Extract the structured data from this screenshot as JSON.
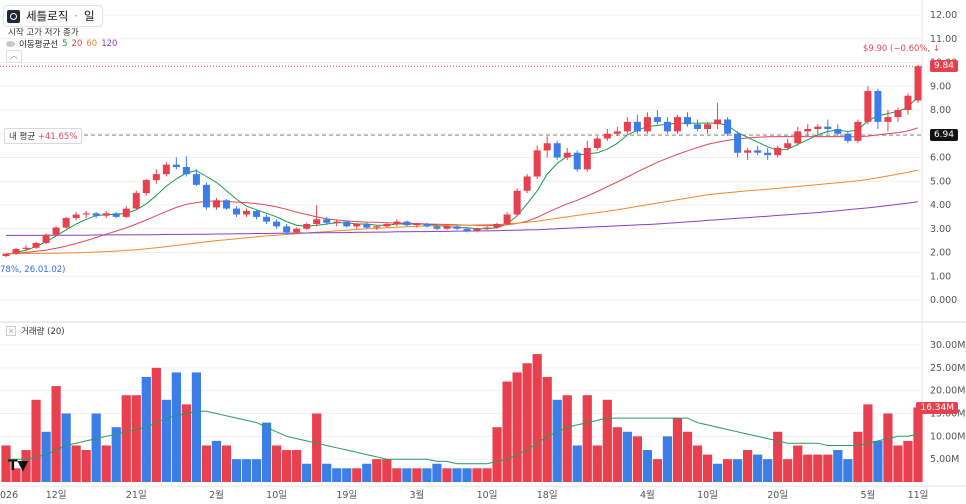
{
  "header": {
    "symbol_name": "세틀로직",
    "interval": "일",
    "ohlc_labels": "시작 고가 저가 종가",
    "ma_label": "이동평균선",
    "ma_periods": [
      "5",
      "20",
      "60",
      "120"
    ],
    "ma_colors": [
      "#1a9a4b",
      "#e04858",
      "#f08a2e",
      "#8c3fbf"
    ],
    "volume_label": "거래량 (20)"
  },
  "annotations": {
    "avg_label": "내 평균",
    "avg_pct": "+41.65%",
    "low_note": "78%, 26.01.02)",
    "high_note": "$9.90 (−0.60%, ↓",
    "last_price": "9.84",
    "avg_price": "6.94",
    "last_volume": "16.34M"
  },
  "colors": {
    "up": "#e8404f",
    "down": "#3b7ee8",
    "grid": "#f0f0f0"
  },
  "chart_data": [
    {
      "type": "candlestick",
      "title": "",
      "y_ticks": [
        "0.000",
        "1.00",
        "2.00",
        "3.00",
        "4.00",
        "5.00",
        "6.00",
        "7.00",
        "8.00",
        "9.00",
        "10.00",
        "11.00",
        "12.00"
      ],
      "ylim": [
        0,
        12
      ],
      "x_ticks": [
        "026",
        "12일",
        "21일",
        "2월",
        "10일",
        "19일",
        "3월",
        "10일",
        "18일",
        "4월",
        "10일",
        "20일",
        "5월",
        "11일"
      ],
      "candles": [
        [
          1.85,
          1.95,
          1.8,
          1.95
        ],
        [
          1.95,
          2.2,
          1.9,
          2.15
        ],
        [
          2.15,
          2.3,
          2.05,
          2.2
        ],
        [
          2.2,
          2.45,
          2.15,
          2.4
        ],
        [
          2.4,
          2.8,
          2.35,
          2.75
        ],
        [
          2.75,
          3.1,
          2.7,
          3.05
        ],
        [
          3.05,
          3.5,
          3.0,
          3.45
        ],
        [
          3.45,
          3.7,
          3.35,
          3.6
        ],
        [
          3.6,
          3.75,
          3.45,
          3.65
        ],
        [
          3.65,
          3.7,
          3.45,
          3.55
        ],
        [
          3.55,
          3.75,
          3.45,
          3.65
        ],
        [
          3.65,
          3.7,
          3.45,
          3.5
        ],
        [
          3.5,
          3.95,
          3.45,
          3.85
        ],
        [
          3.85,
          4.6,
          3.8,
          4.5
        ],
        [
          4.5,
          5.1,
          4.4,
          5.05
        ],
        [
          5.05,
          5.5,
          4.9,
          5.3
        ],
        [
          5.3,
          5.8,
          5.2,
          5.7
        ],
        [
          5.7,
          6.0,
          5.5,
          5.6
        ],
        [
          5.6,
          6.05,
          5.2,
          5.3
        ],
        [
          5.3,
          5.5,
          4.8,
          4.85
        ],
        [
          4.85,
          4.95,
          3.8,
          3.9
        ],
        [
          3.9,
          4.3,
          3.8,
          4.2
        ],
        [
          4.2,
          4.25,
          3.8,
          3.85
        ],
        [
          3.85,
          3.95,
          3.5,
          3.6
        ],
        [
          3.6,
          3.85,
          3.5,
          3.75
        ],
        [
          3.75,
          3.8,
          3.4,
          3.5
        ],
        [
          3.5,
          3.6,
          3.2,
          3.3
        ],
        [
          3.3,
          3.4,
          3.0,
          3.1
        ],
        [
          3.1,
          3.2,
          2.75,
          2.85
        ],
        [
          2.85,
          3.05,
          2.8,
          3.0
        ],
        [
          3.0,
          3.25,
          2.95,
          3.2
        ],
        [
          3.2,
          4.0,
          3.1,
          3.4
        ],
        [
          3.4,
          3.5,
          3.15,
          3.25
        ],
        [
          3.25,
          3.4,
          3.1,
          3.3
        ],
        [
          3.3,
          3.35,
          3.05,
          3.1
        ],
        [
          3.1,
          3.25,
          3.0,
          3.2
        ],
        [
          3.2,
          3.25,
          3.0,
          3.05
        ],
        [
          3.05,
          3.15,
          2.95,
          3.1
        ],
        [
          3.1,
          3.25,
          3.05,
          3.2
        ],
        [
          3.2,
          3.4,
          3.1,
          3.3
        ],
        [
          3.3,
          3.35,
          3.1,
          3.15
        ],
        [
          3.15,
          3.25,
          3.05,
          3.2
        ],
        [
          3.2,
          3.25,
          3.05,
          3.1
        ],
        [
          3.1,
          3.15,
          2.95,
          3.0
        ],
        [
          3.0,
          3.15,
          2.95,
          3.1
        ],
        [
          3.1,
          3.15,
          2.95,
          3.0
        ],
        [
          3.0,
          3.05,
          2.85,
          2.9
        ],
        [
          2.9,
          3.05,
          2.85,
          3.0
        ],
        [
          3.0,
          3.1,
          2.95,
          3.05
        ],
        [
          3.05,
          3.25,
          3.0,
          3.2
        ],
        [
          3.2,
          3.7,
          3.15,
          3.6
        ],
        [
          3.6,
          4.7,
          3.55,
          4.6
        ],
        [
          4.6,
          5.3,
          4.5,
          5.2
        ],
        [
          5.2,
          6.5,
          5.1,
          6.3
        ],
        [
          6.3,
          6.9,
          6.0,
          6.6
        ],
        [
          6.6,
          6.7,
          5.9,
          6.0
        ],
        [
          6.0,
          6.4,
          5.9,
          6.2
        ],
        [
          6.2,
          6.3,
          5.4,
          5.5
        ],
        [
          5.5,
          6.7,
          5.4,
          6.4
        ],
        [
          6.4,
          6.9,
          6.3,
          6.8
        ],
        [
          6.8,
          7.2,
          6.7,
          7.0
        ],
        [
          7.0,
          7.3,
          6.9,
          7.1
        ],
        [
          7.1,
          7.7,
          7.0,
          7.5
        ],
        [
          7.5,
          7.8,
          7.0,
          7.1
        ],
        [
          7.1,
          7.9,
          7.0,
          7.7
        ],
        [
          7.7,
          8.0,
          7.4,
          7.5
        ],
        [
          7.5,
          7.7,
          7.0,
          7.1
        ],
        [
          7.1,
          7.8,
          7.0,
          7.7
        ],
        [
          7.7,
          7.9,
          7.3,
          7.4
        ],
        [
          7.4,
          7.6,
          7.1,
          7.2
        ],
        [
          7.2,
          7.5,
          7.0,
          7.4
        ],
        [
          7.4,
          8.3,
          7.2,
          7.6
        ],
        [
          7.6,
          7.7,
          6.9,
          7.0
        ],
        [
          7.0,
          7.1,
          6.0,
          6.2
        ],
        [
          6.2,
          6.4,
          5.9,
          6.3
        ],
        [
          6.3,
          6.5,
          6.1,
          6.2
        ],
        [
          6.2,
          6.4,
          5.9,
          6.1
        ],
        [
          6.1,
          6.5,
          6.0,
          6.4
        ],
        [
          6.4,
          6.8,
          6.3,
          6.6
        ],
        [
          6.6,
          7.3,
          6.5,
          7.1
        ],
        [
          7.1,
          7.4,
          6.9,
          7.2
        ],
        [
          7.2,
          7.4,
          6.9,
          7.3
        ],
        [
          7.3,
          7.6,
          7.0,
          7.2
        ],
        [
          7.2,
          7.4,
          6.9,
          7.0
        ],
        [
          7.0,
          7.1,
          6.6,
          6.7
        ],
        [
          6.7,
          7.6,
          6.6,
          7.5
        ],
        [
          7.5,
          9.0,
          7.4,
          8.8
        ],
        [
          8.8,
          8.9,
          7.2,
          7.5
        ],
        [
          7.5,
          8.0,
          7.1,
          7.7
        ],
        [
          7.7,
          8.1,
          7.5,
          8.0
        ],
        [
          8.0,
          8.7,
          7.8,
          8.6
        ],
        [
          8.4,
          9.9,
          8.3,
          9.84
        ]
      ],
      "ma5": [
        1.9,
        2.0,
        2.1,
        2.25,
        2.45,
        2.7,
        2.95,
        3.2,
        3.4,
        3.55,
        3.6,
        3.6,
        3.65,
        3.8,
        4.05,
        4.4,
        4.8,
        5.1,
        5.35,
        5.45,
        5.2,
        4.95,
        4.6,
        4.25,
        3.95,
        3.8,
        3.65,
        3.5,
        3.3,
        3.15,
        3.1,
        3.15,
        3.2,
        3.25,
        3.25,
        3.2,
        3.2,
        3.15,
        3.15,
        3.2,
        3.2,
        3.2,
        3.2,
        3.15,
        3.1,
        3.05,
        3.05,
        3.0,
        3.0,
        3.05,
        3.2,
        3.55,
        4.05,
        4.6,
        5.3,
        5.75,
        6.05,
        6.1,
        6.15,
        6.2,
        6.35,
        6.6,
        6.95,
        7.15,
        7.3,
        7.35,
        7.4,
        7.45,
        7.45,
        7.45,
        7.45,
        7.45,
        7.35,
        7.05,
        6.85,
        6.65,
        6.45,
        6.3,
        6.35,
        6.55,
        6.75,
        6.95,
        7.1,
        7.15,
        7.1,
        7.15,
        7.55,
        7.75,
        7.85,
        7.95,
        8.1,
        8.6
      ],
      "ma20": [
        1.95,
        1.97,
        2.0,
        2.05,
        2.1,
        2.18,
        2.27,
        2.38,
        2.5,
        2.63,
        2.77,
        2.9,
        3.04,
        3.2,
        3.37,
        3.55,
        3.73,
        3.9,
        4.03,
        4.1,
        4.15,
        4.17,
        4.15,
        4.12,
        4.1,
        4.06,
        4.0,
        3.92,
        3.82,
        3.7,
        3.6,
        3.5,
        3.42,
        3.37,
        3.33,
        3.3,
        3.28,
        3.27,
        3.25,
        3.24,
        3.23,
        3.22,
        3.2,
        3.19,
        3.18,
        3.17,
        3.15,
        3.14,
        3.13,
        3.14,
        3.17,
        3.22,
        3.32,
        3.48,
        3.68,
        3.87,
        4.05,
        4.2,
        4.38,
        4.57,
        4.77,
        4.97,
        5.18,
        5.4,
        5.6,
        5.8,
        5.97,
        6.13,
        6.28,
        6.42,
        6.55,
        6.65,
        6.72,
        6.78,
        6.82,
        6.85,
        6.87,
        6.88,
        6.88,
        6.88,
        6.88,
        6.88,
        6.88,
        6.88,
        6.87,
        6.87,
        6.9,
        6.95,
        7.0,
        7.05,
        7.12,
        7.25
      ],
      "ma60": [
        1.95,
        1.95,
        1.96,
        1.96,
        1.97,
        1.97,
        1.98,
        1.99,
        2.0,
        2.02,
        2.04,
        2.06,
        2.09,
        2.12,
        2.16,
        2.2,
        2.25,
        2.3,
        2.35,
        2.4,
        2.45,
        2.5,
        2.54,
        2.58,
        2.62,
        2.66,
        2.7,
        2.73,
        2.76,
        2.79,
        2.82,
        2.85,
        2.88,
        2.91,
        2.94,
        2.97,
        3.0,
        3.02,
        3.04,
        3.06,
        3.08,
        3.1,
        3.12,
        3.13,
        3.14,
        3.15,
        3.15,
        3.16,
        3.17,
        3.18,
        3.2,
        3.23,
        3.27,
        3.32,
        3.38,
        3.44,
        3.5,
        3.56,
        3.62,
        3.68,
        3.74,
        3.8,
        3.87,
        3.94,
        4.01,
        4.08,
        4.15,
        4.22,
        4.29,
        4.36,
        4.43,
        4.48,
        4.52,
        4.56,
        4.6,
        4.63,
        4.66,
        4.7,
        4.74,
        4.78,
        4.82,
        4.86,
        4.9,
        4.94,
        4.98,
        5.02,
        5.08,
        5.15,
        5.22,
        5.3,
        5.38,
        5.47
      ],
      "ma120": [
        2.72,
        2.72,
        2.72,
        2.72,
        2.73,
        2.73,
        2.73,
        2.73,
        2.73,
        2.74,
        2.74,
        2.74,
        2.74,
        2.75,
        2.75,
        2.75,
        2.76,
        2.76,
        2.76,
        2.77,
        2.77,
        2.78,
        2.78,
        2.79,
        2.79,
        2.8,
        2.8,
        2.81,
        2.81,
        2.82,
        2.82,
        2.83,
        2.83,
        2.84,
        2.84,
        2.85,
        2.85,
        2.86,
        2.86,
        2.87,
        2.87,
        2.88,
        2.88,
        2.89,
        2.89,
        2.9,
        2.9,
        2.91,
        2.91,
        2.92,
        2.93,
        2.94,
        2.95,
        2.96,
        2.98,
        3.0,
        3.02,
        3.04,
        3.06,
        3.08,
        3.1,
        3.12,
        3.14,
        3.16,
        3.18,
        3.2,
        3.23,
        3.26,
        3.29,
        3.32,
        3.35,
        3.38,
        3.41,
        3.44,
        3.47,
        3.5,
        3.53,
        3.56,
        3.59,
        3.62,
        3.65,
        3.68,
        3.72,
        3.76,
        3.8,
        3.84,
        3.88,
        3.93,
        3.98,
        4.03,
        4.08,
        4.14
      ]
    },
    {
      "type": "bar",
      "title": "",
      "y_ticks": [
        "5.00M",
        "10.00M",
        "15.00M",
        "20.00M",
        "25.00M",
        "30.00M"
      ],
      "ylim": [
        0,
        33
      ],
      "values_millions": [
        8,
        3,
        7,
        18,
        11,
        21,
        15,
        8,
        7,
        15,
        8,
        12,
        19,
        19,
        23,
        25,
        18,
        24,
        17,
        24,
        8,
        9,
        8,
        5,
        5,
        5,
        13,
        8,
        7,
        7,
        4,
        15,
        4,
        3,
        3,
        3,
        4,
        5,
        5,
        3,
        3,
        3,
        3,
        4,
        3,
        3,
        3,
        3,
        3,
        12,
        22,
        24,
        26,
        28,
        23,
        18,
        19,
        8,
        19,
        8,
        18,
        12,
        11,
        10,
        7,
        5,
        10,
        14,
        11,
        8,
        6,
        4,
        5,
        5,
        7,
        6,
        5,
        11,
        5,
        8,
        6,
        6,
        6,
        7,
        5,
        11,
        17,
        9,
        15,
        8,
        9,
        16.34
      ],
      "vol_ma": [
        5,
        5,
        5,
        5.5,
        6,
        7,
        8,
        8.5,
        9,
        9.5,
        10,
        10.5,
        11,
        11.5,
        12,
        13,
        14,
        14.5,
        15,
        15.5,
        15.5,
        15,
        14.5,
        14,
        13.5,
        13,
        12,
        11,
        10,
        9.5,
        9,
        8.5,
        8,
        7.5,
        7,
        6.5,
        6,
        5.5,
        5,
        5,
        5,
        5,
        5,
        4.5,
        4.5,
        4,
        4,
        4,
        4,
        4.5,
        5,
        6,
        7,
        8.5,
        10,
        11,
        12,
        12.5,
        13,
        13.5,
        14,
        14,
        14,
        14,
        14,
        14,
        14,
        14,
        14,
        13,
        12.5,
        12,
        11.5,
        11,
        10.5,
        10,
        9.5,
        9,
        8.5,
        8.5,
        8.5,
        8.5,
        8,
        8,
        8,
        8,
        8.5,
        9,
        9.5,
        10,
        10,
        10.5
      ],
      "vol_dir": [
        1,
        1,
        1,
        1,
        0,
        1,
        0,
        1,
        1,
        0,
        1,
        0,
        1,
        1,
        0,
        1,
        0,
        0,
        1,
        0,
        1,
        0,
        1,
        0,
        0,
        0,
        0,
        1,
        1,
        1,
        0,
        1,
        0,
        0,
        0,
        1,
        0,
        1,
        1,
        1,
        0,
        1,
        0,
        0,
        1,
        0,
        0,
        1,
        1,
        1,
        1,
        1,
        1,
        1,
        1,
        0,
        1,
        0,
        1,
        1,
        1,
        1,
        0,
        1,
        0,
        1,
        0,
        1,
        1,
        1,
        1,
        0,
        1,
        0,
        1,
        0,
        0,
        1,
        1,
        1,
        1,
        1,
        1,
        0,
        0,
        1,
        1,
        0,
        1,
        1,
        1,
        1
      ]
    }
  ]
}
